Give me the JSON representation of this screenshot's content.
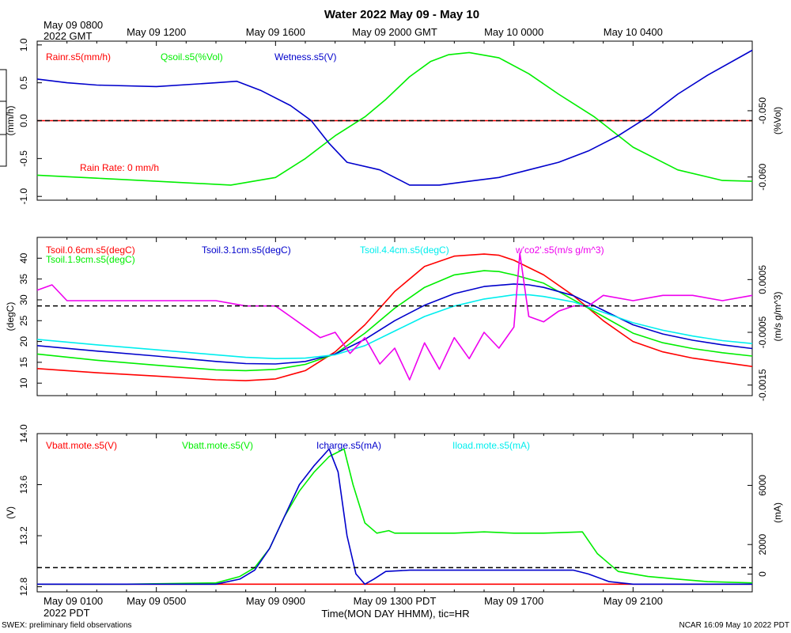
{
  "title": "Water 2022 May 09 - May 10",
  "top_time_labels": {
    "origin": [
      "May 09 0800",
      "2022 GMT"
    ],
    "ticks": [
      "May 09 1200",
      "May 09 1600",
      "May 09 2000 GMT",
      "May 10 0000",
      "May 10 0400"
    ]
  },
  "bottom_time_labels": {
    "origin": [
      "May 09 0100",
      "2022 PDT"
    ],
    "ticks": [
      "May 09 0500",
      "May 09 0900",
      "May 09 1300 PDT",
      "May 09 1700",
      "May 09 2100"
    ]
  },
  "xaxis_title": "Time(MON DAY HHMM), tic=HR",
  "footer_left": "SWEX: preliminary field observations",
  "footer_right": "NCAR 16:09 May 10 2022 PDT",
  "colors": {
    "red": "#ff0000",
    "green": "#00ee00",
    "blue": "#0000cc",
    "cyan": "#00eeee",
    "magenta": "#ee00ee"
  },
  "chart_data": [
    {
      "type": "line",
      "panel": "water",
      "x_unit": "hours since May 09 0100 PDT",
      "x_range": [
        0,
        24
      ],
      "left_axis": {
        "label": "(mm/h)",
        "ylim": [
          -1.05,
          1.05
        ],
        "ticks": [
          "-1.0",
          "-0.5",
          "0.0",
          "0.5",
          "1.0"
        ],
        "tick_values": [
          -1.0,
          -0.5,
          0.0,
          0.5,
          1.0
        ]
      },
      "right_axis": {
        "label": "(%Vol)",
        "ylim": [
          -0.0635,
          -0.0395
        ],
        "ticks": [
          "-0.060",
          "-0.050"
        ],
        "tick_values": [
          -0.06,
          -0.05
        ]
      },
      "legend": [
        "Rainr.s5(mm/h)",
        "Qsoil.s5(%Vol)",
        "Wetness.s5(V)"
      ],
      "annotation": "Rain Rate: 0 mm/h",
      "reference_line": 0.0,
      "series": [
        {
          "name": "Rainr.s5(mm/h)",
          "color": "red",
          "axis": "left",
          "x": [
            0,
            24
          ],
          "y": [
            0,
            0
          ]
        },
        {
          "name": "Qsoil.s5(%Vol)",
          "color": "green",
          "axis": "left",
          "x": [
            0,
            2,
            4,
            6.5,
            8,
            9,
            10,
            11,
            11.7,
            12.5,
            13.2,
            13.8,
            14.5,
            15.5,
            16.5,
            17.5,
            18.7,
            20,
            21.5,
            23,
            24
          ],
          "y": [
            -0.72,
            -0.76,
            -0.8,
            -0.85,
            -0.75,
            -0.5,
            -0.2,
            0.05,
            0.28,
            0.58,
            0.78,
            0.87,
            0.9,
            0.83,
            0.62,
            0.35,
            0.05,
            -0.35,
            -0.65,
            -0.79,
            -0.8
          ]
        },
        {
          "name": "Wetness.s5(V)",
          "color": "blue",
          "axis": "left",
          "x": [
            0,
            1,
            2,
            4,
            6,
            6.7,
            7.5,
            8.5,
            9.2,
            9.8,
            10.4,
            11.5,
            12,
            12.5,
            13.5,
            14.5,
            15.5,
            16.5,
            17.5,
            18.5,
            19.5,
            20.5,
            21.5,
            22.5,
            24
          ],
          "y": [
            0.55,
            0.5,
            0.47,
            0.45,
            0.5,
            0.52,
            0.4,
            0.2,
            0.0,
            -0.3,
            -0.55,
            -0.65,
            -0.75,
            -0.85,
            -0.85,
            -0.8,
            -0.75,
            -0.65,
            -0.55,
            -0.4,
            -0.2,
            0.05,
            0.35,
            0.6,
            0.93
          ]
        }
      ]
    },
    {
      "type": "line",
      "panel": "soil_temperature",
      "x_unit": "hours since May 09 0100 PDT",
      "x_range": [
        0,
        24
      ],
      "left_axis": {
        "label": "(degC)",
        "ylim": [
          7,
          45
        ],
        "ticks": [
          "10",
          "15",
          "20",
          "25",
          "30",
          "35",
          "40"
        ],
        "tick_values": [
          10,
          15,
          20,
          25,
          30,
          35,
          40
        ]
      },
      "right_axis": {
        "label": "(m/s g/m^3)",
        "ylim": [
          -0.0017,
          0.0013
        ],
        "ticks": [
          "-0.0015",
          "-0.0005",
          "0.0005"
        ],
        "tick_values": [
          -0.0015,
          -0.0005,
          0.0005
        ]
      },
      "legend": [
        "Tsoil.0.6cm.s5(degC)",
        "Tsoil.1.9cm.s5(degC)",
        "Tsoil.3.1cm.s5(degC)",
        "Tsoil.4.4cm.s5(degC)",
        "w'co2'.s5(m/s g/m^3)"
      ],
      "reference_line_right": 0.0,
      "series": [
        {
          "name": "Tsoil.0.6cm.s5(degC)",
          "color": "red",
          "axis": "left",
          "x": [
            0,
            2,
            4,
            6,
            7,
            8,
            9,
            10,
            11,
            12,
            13,
            14,
            15,
            15.5,
            16,
            17,
            18,
            19,
            20,
            21,
            22,
            23,
            24
          ],
          "y": [
            13.5,
            12.5,
            11.7,
            10.8,
            10.6,
            11.0,
            13.0,
            17.5,
            24,
            32,
            38,
            40.5,
            41,
            40.7,
            39.5,
            36,
            31,
            25,
            20,
            17.5,
            16,
            15,
            14
          ]
        },
        {
          "name": "Tsoil.1.9cm.s5(degC)",
          "color": "green",
          "axis": "left",
          "x": [
            0,
            2,
            4,
            6,
            7,
            8,
            9,
            10,
            11,
            12,
            13,
            14,
            15,
            15.5,
            16,
            17,
            18,
            19,
            20,
            21,
            22,
            23,
            24
          ],
          "y": [
            17,
            15.5,
            14.3,
            13.2,
            13,
            13.3,
            14.5,
            17,
            22,
            28,
            33,
            36,
            37,
            36.8,
            36,
            34,
            30,
            26,
            22,
            19.7,
            18.3,
            17.3,
            16.5
          ]
        },
        {
          "name": "Tsoil.3.1cm.s5(degC)",
          "color": "blue",
          "axis": "left",
          "x": [
            0,
            2,
            4,
            6,
            7,
            8,
            9,
            10,
            11,
            12,
            13,
            14,
            15,
            16,
            16.5,
            17,
            18,
            19,
            20,
            21,
            22,
            23,
            24
          ],
          "y": [
            19,
            17.7,
            16.5,
            15.2,
            14.7,
            14.6,
            15.2,
            17,
            20.5,
            25,
            28.7,
            31.5,
            33.2,
            33.8,
            33.6,
            33,
            31,
            27.5,
            24,
            21.8,
            20.3,
            19.2,
            18.3
          ]
        },
        {
          "name": "Tsoil.4.4cm.s5(degC)",
          "color": "cyan",
          "axis": "left",
          "x": [
            0,
            2,
            4,
            6,
            7,
            8,
            9,
            10,
            11,
            12,
            13,
            14,
            15,
            16,
            16.5,
            17,
            18,
            19,
            20,
            21,
            22,
            23,
            24
          ],
          "y": [
            20.5,
            19.2,
            18,
            16.8,
            16.2,
            15.9,
            16,
            16.8,
            19,
            22.5,
            26,
            28.5,
            30.2,
            31.2,
            31.2,
            30.8,
            29.5,
            27,
            24.5,
            22.7,
            21.3,
            20.2,
            19.5
          ]
        },
        {
          "name": "w'co2'.s5(m/s g/m^3)",
          "color": "magenta",
          "axis": "right",
          "x": [
            0,
            0.5,
            1,
            2,
            3,
            4,
            5,
            6,
            7,
            8,
            8.5,
            9,
            9.5,
            10,
            10.5,
            11,
            11.5,
            12,
            12.5,
            13,
            13.5,
            14,
            14.5,
            15,
            15.5,
            16,
            16.2,
            16.5,
            17,
            17.5,
            18,
            18.5,
            19,
            20,
            21,
            22,
            23,
            24
          ],
          "y": [
            0.0003,
            0.0004,
            0.0001,
            0.0001,
            0.0001,
            0.0001,
            0.0001,
            0.0001,
            0.0,
            0.0,
            -0.0002,
            -0.0004,
            -0.0006,
            -0.0005,
            -0.0009,
            -0.0006,
            -0.0011,
            -0.0008,
            -0.0014,
            -0.0007,
            -0.0012,
            -0.0006,
            -0.001,
            -0.0005,
            -0.0008,
            -0.0004,
            0.001,
            -0.0002,
            -0.0003,
            -0.0001,
            0.0,
            0.0,
            0.0002,
            0.0001,
            0.0002,
            0.0002,
            0.0001,
            0.0002
          ]
        }
      ]
    },
    {
      "type": "line",
      "panel": "power",
      "x_unit": "hours since May 09 0100 PDT",
      "x_range": [
        0,
        24
      ],
      "left_axis": {
        "label": "(V)",
        "ylim": [
          12.76,
          14.0
        ],
        "ticks": [
          "12.8",
          "13.2",
          "13.6",
          "14.0"
        ],
        "tick_values": [
          12.8,
          13.2,
          13.6,
          14.0
        ]
      },
      "right_axis": {
        "label": "(mA)",
        "ylim": [
          -1200,
          9500
        ],
        "ticks": [
          "0",
          "2000",
          "6000"
        ],
        "tick_values": [
          0,
          2000,
          6000
        ]
      },
      "legend": [
        "Vbatt.mote.s5(V)",
        "Vbatt.mote.s5(V)",
        "Icharge.s5(mA)",
        "Iload.mote.s5(mA)"
      ],
      "reference_line_left": 12.95,
      "series": [
        {
          "name": "Vbatt.mote.s5(V)",
          "color": "red",
          "axis": "left",
          "x": [
            0,
            24
          ],
          "y": [
            12.82,
            12.82
          ]
        },
        {
          "name": "Vbatt.mote.s5(V)",
          "color": "green",
          "axis": "left",
          "x": [
            0,
            3,
            6,
            6.8,
            7.3,
            7.8,
            8.3,
            8.8,
            9.3,
            9.8,
            10.3,
            10.6,
            11,
            11.4,
            11.8,
            12,
            13,
            14,
            15,
            16,
            17,
            18.3,
            18.8,
            19.5,
            20.5,
            21.5,
            22.5,
            24
          ],
          "y": [
            12.82,
            12.82,
            12.83,
            12.88,
            12.95,
            13.1,
            13.35,
            13.55,
            13.7,
            13.82,
            13.88,
            13.6,
            13.3,
            13.22,
            13.24,
            13.22,
            13.22,
            13.22,
            13.23,
            13.22,
            13.22,
            13.23,
            13.06,
            12.92,
            12.88,
            12.86,
            12.84,
            12.83
          ]
        },
        {
          "name": "Icharge.s5(mA)",
          "color": "blue",
          "axis": "left",
          "x": [
            0,
            3,
            6,
            6.8,
            7.3,
            7.8,
            8.3,
            8.8,
            9.3,
            9.8,
            10.1,
            10.4,
            10.7,
            11,
            11.3,
            11.7,
            12.5,
            14,
            16,
            18,
            18.5,
            19.2,
            20,
            22,
            24
          ],
          "y": [
            12.82,
            12.82,
            12.82,
            12.86,
            12.93,
            13.1,
            13.35,
            13.6,
            13.75,
            13.88,
            13.7,
            13.2,
            12.9,
            12.82,
            12.86,
            12.92,
            12.93,
            12.93,
            12.93,
            12.93,
            12.9,
            12.84,
            12.82,
            12.82,
            12.82
          ]
        },
        {
          "name": "Iload.mote.s5(mA)",
          "color": "cyan",
          "axis": "right",
          "x": [],
          "y": []
        }
      ]
    }
  ]
}
